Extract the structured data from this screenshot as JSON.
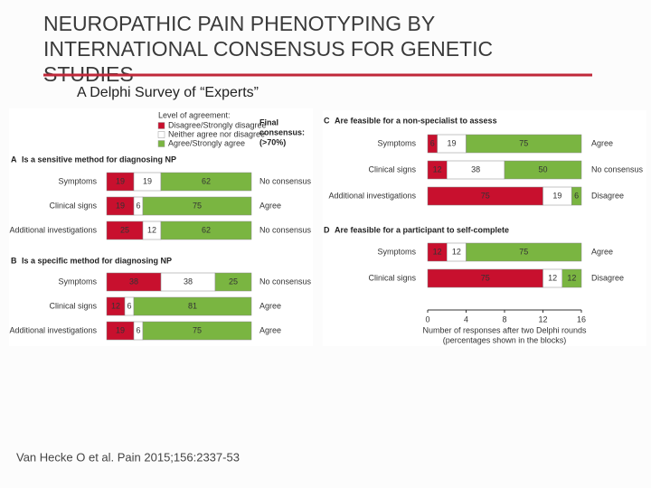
{
  "slide": {
    "title": [
      "NEUROPATHIC PAIN PHENOTYPING BY",
      "INTERNATIONAL CONSENSUS FOR GENETIC",
      "STUDIES"
    ],
    "subtitle": "A Delphi Survey of “Experts”",
    "footnote": "Van Hecke O et al. Pain 2015;156:2337-53"
  },
  "legend": {
    "title": "Level of agreement:",
    "consensus_title": [
      "Final",
      "consensus:",
      "(>70%)"
    ]
  },
  "chart_data": [
    {
      "type": "bar",
      "orientation": "horizontal",
      "stacked": true,
      "letter": "A",
      "title": "Is a sensitive method for diagnosing NP",
      "categories": [
        "Symptoms",
        "Clinical signs",
        "Additional investigations"
      ],
      "consensus": [
        "No consensus",
        "Agree",
        "No consensus"
      ],
      "xlim": [
        0,
        16
      ],
      "series": [
        {
          "name": "Disagree/Strongly disagree",
          "color": "#c8102e",
          "values": [
            3,
            3,
            4
          ],
          "value_labels": [
            "19",
            "19",
            "25"
          ]
        },
        {
          "name": "Neither agree nor disagree",
          "color": "#ffffff",
          "values": [
            3,
            1,
            2
          ],
          "value_labels": [
            "19",
            "6",
            "12"
          ]
        },
        {
          "name": "Agree/Strongly agree",
          "color": "#7ab541",
          "values": [
            10,
            12,
            10
          ],
          "value_labels": [
            "62",
            "75",
            "62"
          ]
        }
      ]
    },
    {
      "type": "bar",
      "orientation": "horizontal",
      "stacked": true,
      "letter": "B",
      "title": "Is a specific method for diagnosing NP",
      "categories": [
        "Symptoms",
        "Clinical signs",
        "Additional investigations"
      ],
      "consensus": [
        "No consensus",
        "Agree",
        "Agree"
      ],
      "xlim": [
        0,
        16
      ],
      "series": [
        {
          "color": "#c8102e",
          "values": [
            6,
            2,
            3
          ],
          "value_labels": [
            "38",
            "12",
            "19"
          ]
        },
        {
          "color": "#ffffff",
          "values": [
            6,
            1,
            1
          ],
          "value_labels": [
            "38",
            "6",
            "6"
          ]
        },
        {
          "color": "#7ab541",
          "values": [
            4,
            13,
            12
          ],
          "value_labels": [
            "25",
            "81",
            "75"
          ]
        }
      ]
    },
    {
      "type": "bar",
      "orientation": "horizontal",
      "stacked": true,
      "letter": "C",
      "title": "Are feasible for a non-specialist to assess",
      "categories": [
        "Symptoms",
        "Clinical signs",
        "Additional investigations"
      ],
      "consensus": [
        "Agree",
        "No consensus",
        "Disagree"
      ],
      "xlim": [
        0,
        16
      ],
      "series": [
        {
          "color": "#c8102e",
          "values": [
            1,
            2,
            12
          ],
          "value_labels": [
            "6",
            "12",
            "75"
          ]
        },
        {
          "color": "#ffffff",
          "values": [
            3,
            6,
            3
          ],
          "value_labels": [
            "19",
            "38",
            "19"
          ]
        },
        {
          "color": "#7ab541",
          "values": [
            12,
            8,
            1
          ],
          "value_labels": [
            "75",
            "50",
            "6"
          ]
        }
      ]
    },
    {
      "type": "bar",
      "orientation": "horizontal",
      "stacked": true,
      "letter": "D",
      "title": "Are feasible for a participant to self-complete",
      "categories": [
        "Symptoms",
        "Clinical signs"
      ],
      "consensus": [
        "Agree",
        "Disagree"
      ],
      "xlim": [
        0,
        16
      ],
      "xticks": [
        0,
        4,
        8,
        12,
        16
      ],
      "xlabel": [
        "Number of responses after two Delphi rounds",
        "(percentages shown in the blocks)"
      ],
      "series": [
        {
          "color": "#c8102e",
          "values": [
            2,
            12
          ],
          "value_labels": [
            "12",
            "75"
          ]
        },
        {
          "color": "#ffffff",
          "values": [
            2,
            2
          ],
          "value_labels": [
            "12",
            "12"
          ]
        },
        {
          "color": "#7ab541",
          "values": [
            12,
            2
          ],
          "value_labels": [
            "75",
            "12"
          ]
        }
      ]
    }
  ]
}
